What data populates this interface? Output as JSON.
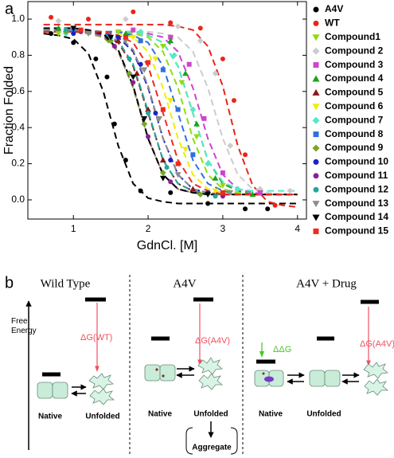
{
  "panel_labels": [
    "a",
    "b"
  ],
  "chart_data": {
    "type": "scatter",
    "xlabel": "GdnCl. [M]",
    "ylabel": "Fraction Folded",
    "xlim": [
      0.39,
      4.12
    ],
    "ylim": [
      -0.106,
      1.097
    ],
    "xticks": [
      1,
      2,
      3,
      4
    ],
    "yticks": [
      {
        "value": 0,
        "label": "0.0"
      },
      {
        "value": 0.2,
        "label": "0.2"
      },
      {
        "value": 0.4,
        "label": "0.4"
      },
      {
        "value": 0.6,
        "label": "0.6"
      },
      {
        "value": 0.8,
        "label": "0.8"
      },
      {
        "value": 1,
        "label": "1.0"
      }
    ],
    "legend": "right",
    "fit_x": [
      0.6,
      0.8,
      1.0,
      1.2,
      1.4,
      1.6,
      1.8,
      2.0,
      2.2,
      2.4,
      2.6,
      2.8,
      3.0,
      3.2,
      3.4,
      3.6,
      3.8,
      4.0
    ],
    "series": [
      {
        "name": "A4V",
        "color": "#000000",
        "marker": "circle",
        "x": [
          0.7,
          1.0,
          1.3,
          1.45,
          1.55,
          1.7,
          1.9,
          2.3,
          2.8,
          3.3,
          3.6
        ],
        "values": [
          0.92,
          0.87,
          0.78,
          0.68,
          0.42,
          0.22,
          0.05,
          0.04,
          -0.02,
          -0.05,
          -0.05
        ],
        "fit": [
          0.92,
          0.91,
          0.89,
          0.81,
          0.6,
          0.3,
          0.09,
          0.01,
          -0.01,
          -0.02,
          -0.02,
          -0.02,
          -0.02,
          -0.02,
          -0.02,
          -0.02,
          -0.02,
          -0.02
        ]
      },
      {
        "name": "WT",
        "color": "#e8251c",
        "marker": "circle",
        "x": [
          0.7,
          1.2,
          1.8,
          2.3,
          2.7,
          3.0,
          3.15,
          3.3,
          3.5,
          3.7
        ],
        "values": [
          1.01,
          1.0,
          1.04,
          0.98,
          0.95,
          0.78,
          0.55,
          0.25,
          0.05,
          -0.03
        ],
        "fit": [
          0.97,
          0.97,
          0.97,
          0.97,
          0.97,
          0.97,
          0.97,
          0.97,
          0.97,
          0.96,
          0.94,
          0.85,
          0.63,
          0.3,
          0.08,
          -0.01,
          -0.03,
          -0.04
        ]
      },
      {
        "name": "Compound1",
        "color": "#8fdc14",
        "marker": "triangle-down",
        "x": [
          0.8,
          1.6,
          2.2,
          2.45,
          2.65,
          3.0,
          3.5
        ],
        "values": [
          0.92,
          0.93,
          0.85,
          0.65,
          0.35,
          0.08,
          0.04
        ],
        "fit": [
          0.93,
          0.93,
          0.93,
          0.93,
          0.93,
          0.93,
          0.92,
          0.9,
          0.82,
          0.62,
          0.34,
          0.14,
          0.06,
          0.04,
          0.03,
          0.03,
          0.03,
          0.03
        ]
      },
      {
        "name": "Compound 2",
        "color": "#cccccc",
        "marker": "diamond",
        "x": [
          0.8,
          1.7,
          2.4,
          2.7,
          2.9,
          3.1,
          3.5,
          3.9
        ],
        "values": [
          0.99,
          1.0,
          0.96,
          0.88,
          0.7,
          0.3,
          0.06,
          0.05
        ],
        "fit": [
          0.93,
          0.93,
          0.93,
          0.93,
          0.93,
          0.93,
          0.93,
          0.93,
          0.92,
          0.9,
          0.82,
          0.62,
          0.34,
          0.14,
          0.06,
          0.04,
          0.03,
          0.03
        ]
      },
      {
        "name": "Compound 3",
        "color": "#cc44cc",
        "marker": "square",
        "x": [
          0.9,
          1.8,
          2.3,
          2.55,
          2.75,
          3.0,
          3.5
        ],
        "values": [
          0.93,
          0.94,
          0.9,
          0.75,
          0.45,
          0.15,
          0.04
        ],
        "fit": [
          0.93,
          0.93,
          0.93,
          0.93,
          0.93,
          0.93,
          0.93,
          0.92,
          0.9,
          0.82,
          0.62,
          0.34,
          0.14,
          0.06,
          0.04,
          0.03,
          0.03,
          0.03
        ]
      },
      {
        "name": "Compound 4",
        "color": "#1aa31a",
        "marker": "triangle-up",
        "x": [
          0.8,
          1.7,
          2.3,
          2.5,
          2.65,
          2.9,
          3.4
        ],
        "values": [
          0.95,
          0.92,
          0.88,
          0.7,
          0.42,
          0.12,
          0.03
        ],
        "fit": [
          0.93,
          0.93,
          0.93,
          0.93,
          0.93,
          0.93,
          0.93,
          0.91,
          0.87,
          0.74,
          0.48,
          0.22,
          0.09,
          0.05,
          0.03,
          0.03,
          0.03,
          0.03
        ]
      },
      {
        "name": "Compound 5",
        "color": "#8b1a1a",
        "marker": "triangle-up",
        "x": [
          1.0,
          1.6,
          1.85,
          2.0,
          2.2,
          2.6
        ],
        "values": [
          0.94,
          0.88,
          0.7,
          0.5,
          0.22,
          0.06
        ],
        "fit": [
          0.93,
          0.93,
          0.93,
          0.93,
          0.91,
          0.87,
          0.74,
          0.48,
          0.22,
          0.09,
          0.05,
          0.03,
          0.03,
          0.03,
          0.03,
          0.03,
          0.03,
          0.03
        ]
      },
      {
        "name": "Compound 6",
        "color": "#eeee00",
        "marker": "triangle-down",
        "x": [
          1.1,
          1.8,
          2.1,
          2.3,
          2.5,
          2.9
        ],
        "values": [
          0.93,
          0.9,
          0.78,
          0.55,
          0.28,
          0.05
        ],
        "fit": [
          0.93,
          0.93,
          0.93,
          0.93,
          0.93,
          0.92,
          0.9,
          0.82,
          0.62,
          0.34,
          0.14,
          0.06,
          0.04,
          0.03,
          0.03,
          0.03,
          0.03,
          0.03
        ]
      },
      {
        "name": "Compound 7",
        "color": "#55e8c8",
        "marker": "diamond",
        "x": [
          0.9,
          1.9,
          2.35,
          2.6,
          2.8,
          3.2
        ],
        "values": [
          0.92,
          0.93,
          0.8,
          0.5,
          0.2,
          0.06
        ],
        "fit": [
          0.93,
          0.93,
          0.93,
          0.93,
          0.93,
          0.93,
          0.93,
          0.91,
          0.87,
          0.74,
          0.48,
          0.22,
          0.1,
          0.06,
          0.05,
          0.05,
          0.05,
          0.05
        ]
      },
      {
        "name": "Compound 8",
        "color": "#2f6fe0",
        "marker": "square",
        "x": [
          1.0,
          1.9,
          2.2,
          2.4,
          2.6,
          3.0
        ],
        "values": [
          0.94,
          0.88,
          0.72,
          0.5,
          0.25,
          0.04
        ],
        "fit": [
          0.93,
          0.93,
          0.93,
          0.93,
          0.93,
          0.93,
          0.91,
          0.87,
          0.74,
          0.48,
          0.22,
          0.09,
          0.05,
          0.03,
          0.03,
          0.03,
          0.03,
          0.03
        ]
      },
      {
        "name": "Compound 9",
        "color": "#7aa626",
        "marker": "diamond",
        "x": [
          0.9,
          1.5,
          1.75,
          1.95,
          2.2,
          2.7
        ],
        "values": [
          0.93,
          0.88,
          0.7,
          0.42,
          0.15,
          0.03
        ],
        "fit": [
          0.93,
          0.93,
          0.93,
          0.92,
          0.9,
          0.82,
          0.62,
          0.34,
          0.14,
          0.06,
          0.04,
          0.03,
          0.03,
          0.03,
          0.03,
          0.03,
          0.03,
          0.03
        ]
      },
      {
        "name": "Compound 10",
        "color": "#1f1fc8",
        "marker": "circle",
        "x": [
          1.0,
          1.6,
          1.9,
          2.1,
          2.3,
          2.8
        ],
        "values": [
          0.92,
          0.9,
          0.75,
          0.48,
          0.22,
          0.04
        ],
        "fit": [
          0.93,
          0.93,
          0.93,
          0.93,
          0.92,
          0.9,
          0.82,
          0.62,
          0.34,
          0.14,
          0.06,
          0.04,
          0.03,
          0.03,
          0.03,
          0.03,
          0.03,
          0.03
        ]
      },
      {
        "name": "Compound 11",
        "color": "#8a1f9c",
        "marker": "circle",
        "x": [
          1.1,
          1.55,
          1.8,
          2.0,
          2.3,
          3.0
        ],
        "values": [
          0.93,
          0.85,
          0.65,
          0.35,
          0.1,
          0.02
        ],
        "fit": [
          0.94,
          0.94,
          0.94,
          0.93,
          0.91,
          0.83,
          0.63,
          0.34,
          0.14,
          0.06,
          0.04,
          0.03,
          0.03,
          0.03,
          0.03,
          0.03,
          0.03,
          0.03
        ]
      },
      {
        "name": "Compound 12",
        "color": "#22a89a",
        "marker": "circle",
        "x": [
          0.9,
          1.5,
          1.75,
          2.0,
          2.25,
          2.9
        ],
        "values": [
          0.94,
          0.9,
          0.78,
          0.48,
          0.18,
          0.02
        ],
        "fit": [
          0.94,
          0.94,
          0.94,
          0.94,
          0.92,
          0.88,
          0.75,
          0.49,
          0.22,
          0.09,
          0.05,
          0.03,
          0.03,
          0.03,
          0.03,
          0.03,
          0.03,
          0.03
        ]
      },
      {
        "name": "Compound 13",
        "color": "#8c8c8c",
        "marker": "triangle-down",
        "x": [
          1.2,
          1.7,
          1.95,
          2.15,
          2.4,
          3.1
        ],
        "values": [
          0.92,
          0.88,
          0.72,
          0.45,
          0.14,
          0.04
        ],
        "fit": [
          0.94,
          0.94,
          0.94,
          0.94,
          0.93,
          0.91,
          0.83,
          0.63,
          0.34,
          0.14,
          0.06,
          0.04,
          0.03,
          0.03,
          0.03,
          0.03,
          0.03,
          0.03
        ]
      },
      {
        "name": "Compound 14",
        "color": "#000000",
        "marker": "triangle-down",
        "x": [
          1.0,
          1.5,
          1.8,
          1.95,
          2.2,
          2.8
        ],
        "values": [
          0.95,
          0.9,
          0.68,
          0.45,
          0.12,
          0.03
        ],
        "fit": [
          0.95,
          0.95,
          0.95,
          0.94,
          0.92,
          0.83,
          0.63,
          0.34,
          0.14,
          0.06,
          0.04,
          0.03,
          0.03,
          0.03,
          0.03,
          0.03,
          0.03,
          0.03
        ]
      },
      {
        "name": "Compound 15",
        "color": "#f02a1a",
        "marker": "square",
        "x": [
          1.1,
          1.7,
          2.0,
          2.2,
          2.4,
          3.0
        ],
        "values": [
          0.94,
          0.9,
          0.76,
          0.5,
          0.2,
          0.04
        ],
        "fit": [
          0.93,
          0.93,
          0.93,
          0.93,
          0.93,
          0.91,
          0.87,
          0.74,
          0.48,
          0.22,
          0.09,
          0.05,
          0.03,
          0.03,
          0.03,
          0.03,
          0.03,
          0.03
        ]
      }
    ]
  },
  "diagram": {
    "energy_axis": "Free Energy",
    "panels": [
      {
        "title": "Wild Type",
        "delta": "ΔG(WT)",
        "native": "Native",
        "unfolded": "Unfolded"
      },
      {
        "title": "A4V",
        "delta": "ΔG(A4V)",
        "native": "Native",
        "unfolded": "Unfolded",
        "aggregate": "Aggregate"
      },
      {
        "title": "A4V + Drug",
        "delta": "ΔG(A4V)",
        "ddg": "ΔΔG",
        "native": "Native",
        "unfolded": "Unfolded"
      }
    ]
  }
}
